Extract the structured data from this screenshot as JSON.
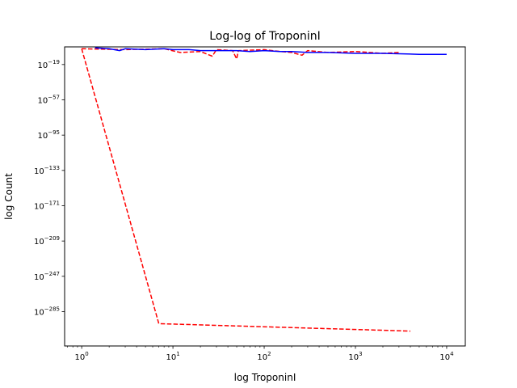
{
  "chart_data": {
    "type": "line",
    "title": "Log-log of TroponinI",
    "xlabel": "log TroponinI",
    "ylabel": "log Count",
    "x_scale": "log",
    "y_scale": "log",
    "xlim": [
      0.65,
      16000
    ],
    "ylim_exponent": [
      -322,
      0
    ],
    "x_ticks": [
      {
        "base": "10",
        "exp": "0",
        "value": 1
      },
      {
        "base": "10",
        "exp": "1",
        "value": 10
      },
      {
        "base": "10",
        "exp": "2",
        "value": 100
      },
      {
        "base": "10",
        "exp": "3",
        "value": 1000
      },
      {
        "base": "10",
        "exp": "4",
        "value": 10000
      }
    ],
    "y_ticks": [
      {
        "base": "10",
        "exp": "−19",
        "value": -19
      },
      {
        "base": "10",
        "exp": "−57",
        "value": -57
      },
      {
        "base": "10",
        "exp": "−95",
        "value": -95
      },
      {
        "base": "10",
        "exp": "−133",
        "value": -133
      },
      {
        "base": "10",
        "exp": "−171",
        "value": -171
      },
      {
        "base": "10",
        "exp": "−209",
        "value": -209
      },
      {
        "base": "10",
        "exp": "−247",
        "value": -247
      },
      {
        "base": "10",
        "exp": "−285",
        "value": -285
      }
    ],
    "grid": false,
    "series": [
      {
        "color": "#ff0000",
        "style": "dashed",
        "points": [
          [
            1.0,
            -2
          ],
          [
            7.0,
            -298
          ],
          [
            4000,
            -306
          ]
        ]
      },
      {
        "color": "#ff0000",
        "style": "dashed",
        "points": [
          [
            1.0,
            -2
          ],
          [
            3.0,
            -3
          ],
          [
            8.0,
            -2
          ],
          [
            12,
            -6
          ],
          [
            20,
            -5
          ],
          [
            27,
            -10
          ],
          [
            30,
            -3
          ],
          [
            45,
            -4
          ],
          [
            50,
            -13
          ],
          [
            52,
            -4
          ],
          [
            100,
            -3
          ],
          [
            150,
            -5
          ],
          [
            200,
            -6
          ],
          [
            260,
            -9
          ],
          [
            300,
            -4
          ],
          [
            500,
            -6
          ],
          [
            1000,
            -5
          ],
          [
            2000,
            -7
          ],
          [
            3000,
            -6
          ]
        ]
      },
      {
        "color": "#0000ff",
        "style": "solid",
        "points": [
          [
            1.4,
            -1
          ],
          [
            2.0,
            -2
          ],
          [
            2.6,
            -4
          ],
          [
            3.0,
            -2
          ],
          [
            5.0,
            -3
          ],
          [
            8.0,
            -2
          ],
          [
            10,
            -3
          ],
          [
            15,
            -3
          ],
          [
            20,
            -4
          ],
          [
            30,
            -4
          ],
          [
            50,
            -4
          ],
          [
            70,
            -5
          ],
          [
            100,
            -4
          ],
          [
            150,
            -5
          ],
          [
            200,
            -5
          ],
          [
            300,
            -6
          ],
          [
            500,
            -6
          ],
          [
            1000,
            -7
          ],
          [
            2000,
            -7
          ],
          [
            5000,
            -8
          ],
          [
            10000,
            -8
          ]
        ]
      }
    ]
  }
}
